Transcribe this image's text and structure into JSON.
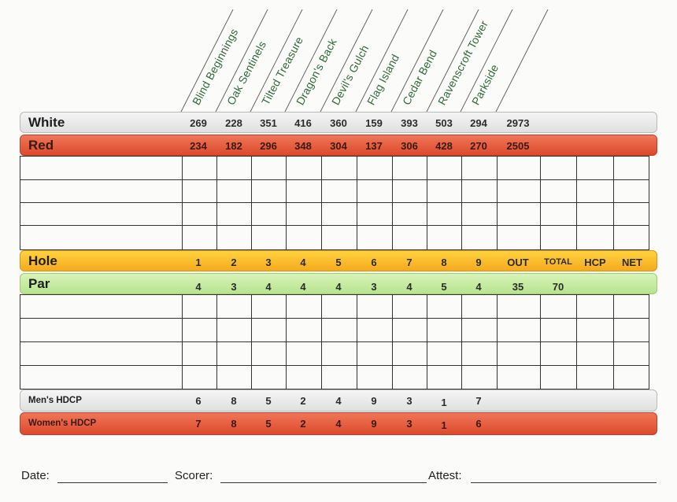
{
  "holes": [
    "Blind Beginnings",
    "Oak Sentinels",
    "Tilted Treasure",
    "Dragon's Back",
    "Devil's Gulch",
    "Flag Island",
    "Cedar Bend",
    "Ravenscroft Tower",
    "Parkside"
  ],
  "rows": {
    "white": {
      "label": "White",
      "values": [
        "269",
        "228",
        "351",
        "416",
        "360",
        "159",
        "393",
        "503",
        "294",
        "2973"
      ]
    },
    "red": {
      "label": "Red",
      "values": [
        "234",
        "182",
        "296",
        "348",
        "304",
        "137",
        "306",
        "428",
        "270",
        "2505"
      ]
    },
    "hole": {
      "label": "Hole",
      "values": [
        "1",
        "2",
        "3",
        "4",
        "5",
        "6",
        "7",
        "8",
        "9",
        "OUT",
        "TOTAL",
        "HCP",
        "NET"
      ]
    },
    "par": {
      "label": "Par",
      "values": [
        "4",
        "3",
        "4",
        "4",
        "4",
        "3",
        "4",
        "5",
        "4",
        "35",
        "70"
      ]
    },
    "mens_hdcp": {
      "label": "Men's HDCP",
      "values": [
        "6",
        "8",
        "5",
        "2",
        "4",
        "9",
        "3",
        "1",
        "7"
      ]
    },
    "womens_hdcp": {
      "label": "Women's HDCP",
      "values": [
        "7",
        "8",
        "5",
        "2",
        "4",
        "9",
        "3",
        "1",
        "6"
      ]
    }
  },
  "footer": {
    "date": "Date:",
    "scorer": "Scorer:",
    "attest": "Attest:"
  }
}
